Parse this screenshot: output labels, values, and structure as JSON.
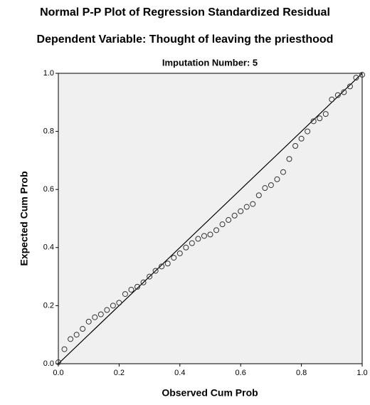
{
  "chart_data": {
    "type": "scatter",
    "title": "Normal P-P Plot of Regression Standardized Residual",
    "subtitle": "Dependent Variable: Thought of leaving the priesthood",
    "annotation": "Imputation Number: 5",
    "xlabel": "Observed Cum Prob",
    "ylabel": "Expected Cum Prob",
    "xlim": [
      0,
      1
    ],
    "ylim": [
      0,
      1
    ],
    "xticks": [
      {
        "value": 0,
        "label": "0.0"
      },
      0.2,
      0.4,
      0.6,
      0.8,
      {
        "value": 1,
        "label": "1.0"
      }
    ],
    "yticks": [
      {
        "value": 0,
        "label": "0.0"
      },
      0.2,
      0.4,
      0.6,
      0.8,
      {
        "value": 1,
        "label": "1.0"
      }
    ],
    "reference_line": true,
    "color": "#333333",
    "background": "#f0f0f0",
    "x": [
      0,
      0.02,
      0.04,
      0.06,
      0.08,
      0.1,
      0.12,
      0.14,
      0.16,
      0.18,
      0.2,
      0.22,
      0.24,
      0.26,
      0.28,
      0.3,
      0.32,
      0.34,
      0.36,
      0.38,
      0.4,
      0.42,
      0.44,
      0.46,
      0.48,
      0.5,
      0.52,
      0.54,
      0.56,
      0.58,
      0.6,
      0.62,
      0.64,
      0.66,
      0.68,
      0.7,
      0.72,
      0.74,
      0.76,
      0.78,
      0.8,
      0.82,
      0.84,
      0.86,
      0.88,
      0.9,
      0.92,
      0.94,
      0.96,
      0.98,
      1
    ],
    "values": [
      0.005,
      0.05,
      0.085,
      0.1,
      0.12,
      0.145,
      0.16,
      0.17,
      0.185,
      0.2,
      0.21,
      0.24,
      0.255,
      0.265,
      0.28,
      0.3,
      0.32,
      0.335,
      0.345,
      0.365,
      0.38,
      0.4,
      0.415,
      0.43,
      0.44,
      0.445,
      0.46,
      0.48,
      0.495,
      0.51,
      0.525,
      0.54,
      0.55,
      0.58,
      0.605,
      0.615,
      0.635,
      0.66,
      0.705,
      0.75,
      0.775,
      0.8,
      0.835,
      0.845,
      0.86,
      0.91,
      0.925,
      0.935,
      0.955,
      0.985,
      0.995
    ]
  }
}
